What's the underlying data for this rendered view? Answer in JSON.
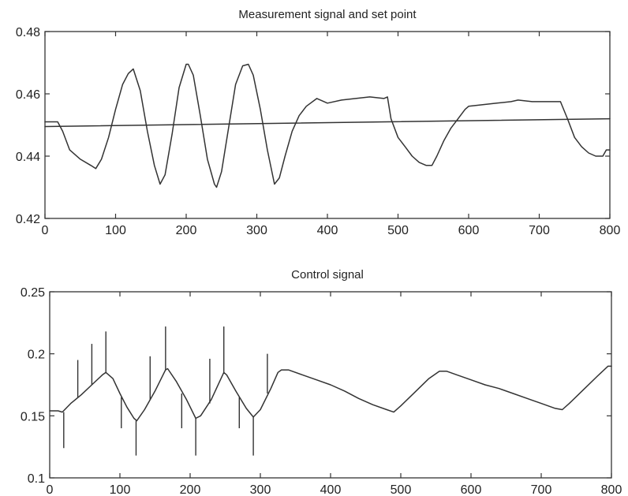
{
  "chart_data": [
    {
      "type": "line",
      "title": "Measurement signal and set point",
      "xlabel": "",
      "ylabel": "",
      "xlim": [
        0,
        800
      ],
      "ylim": [
        0.42,
        0.48
      ],
      "x_ticks": [
        0,
        100,
        200,
        300,
        400,
        500,
        600,
        700,
        800
      ],
      "y_ticks": [
        0.42,
        0.44,
        0.46,
        0.48
      ],
      "x_tick_labels": [
        "0",
        "100",
        "200",
        "300",
        "400",
        "500",
        "600",
        "700",
        "800"
      ],
      "y_tick_labels": [
        "0.42",
        "0.44",
        "0.46",
        "0.48"
      ],
      "grid": false,
      "series": [
        {
          "x": [
            0,
            10,
            18,
            25,
            35,
            50,
            65,
            72,
            80,
            90,
            100,
            110,
            118,
            125,
            135,
            145,
            155,
            163,
            170,
            180,
            190,
            200,
            203,
            210,
            220,
            230,
            240,
            243,
            250,
            260,
            270,
            280,
            288,
            295,
            305,
            315,
            325,
            332,
            340,
            350,
            360,
            370,
            385,
            400,
            420,
            440,
            460,
            480,
            485,
            490,
            500,
            510,
            520,
            530,
            540,
            548,
            555,
            565,
            575,
            585,
            595,
            600,
            620,
            640,
            660,
            670,
            690,
            710,
            730,
            740,
            750,
            760,
            770,
            780,
            790,
            795,
            800
          ],
          "y": [
            0.451,
            0.451,
            0.451,
            0.448,
            0.442,
            0.439,
            0.437,
            0.436,
            0.439,
            0.446,
            0.455,
            0.463,
            0.4665,
            0.468,
            0.461,
            0.448,
            0.437,
            0.431,
            0.434,
            0.447,
            0.462,
            0.4695,
            0.4695,
            0.466,
            0.453,
            0.439,
            0.431,
            0.43,
            0.435,
            0.449,
            0.463,
            0.469,
            0.4695,
            0.466,
            0.455,
            0.442,
            0.431,
            0.433,
            0.44,
            0.448,
            0.453,
            0.456,
            0.4585,
            0.457,
            0.458,
            0.4585,
            0.459,
            0.4585,
            0.459,
            0.452,
            0.446,
            0.443,
            0.44,
            0.438,
            0.437,
            0.437,
            0.44,
            0.445,
            0.449,
            0.452,
            0.455,
            0.456,
            0.4565,
            0.457,
            0.4575,
            0.458,
            0.4575,
            0.4575,
            0.4575,
            0.452,
            0.446,
            0.443,
            0.441,
            0.44,
            0.44,
            0.442,
            0.442
          ]
        },
        {
          "x": [
            0,
            800
          ],
          "y": [
            0.4495,
            0.452
          ]
        }
      ]
    },
    {
      "type": "line",
      "title": "Control signal",
      "xlabel": "",
      "ylabel": "",
      "xlim": [
        0,
        800
      ],
      "ylim": [
        0.1,
        0.25
      ],
      "x_ticks": [
        0,
        100,
        200,
        300,
        400,
        500,
        600,
        700,
        800
      ],
      "y_ticks": [
        0.1,
        0.15,
        0.2,
        0.25
      ],
      "x_tick_labels": [
        "0",
        "100",
        "200",
        "300",
        "400",
        "500",
        "600",
        "700",
        "800"
      ],
      "y_tick_labels": [
        "0.1",
        "0.15",
        "0.2",
        "0.25"
      ],
      "grid": false,
      "series": [
        {
          "x": [
            0,
            12,
            18,
            30,
            45,
            60,
            75,
            80,
            90,
            100,
            110,
            120,
            124,
            135,
            150,
            165,
            168,
            180,
            195,
            208,
            215,
            230,
            248,
            252,
            265,
            280,
            290,
            300,
            315,
            325,
            330,
            340,
            360,
            380,
            400,
            420,
            440,
            460,
            480,
            490,
            500,
            520,
            540,
            555,
            565,
            580,
            600,
            620,
            640,
            660,
            680,
            700,
            720,
            730,
            740,
            760,
            780,
            795,
            800
          ],
          "y": [
            0.154,
            0.154,
            0.153,
            0.16,
            0.167,
            0.175,
            0.183,
            0.185,
            0.18,
            0.168,
            0.157,
            0.148,
            0.146,
            0.155,
            0.17,
            0.187,
            0.188,
            0.178,
            0.163,
            0.148,
            0.15,
            0.163,
            0.185,
            0.183,
            0.17,
            0.156,
            0.149,
            0.155,
            0.172,
            0.185,
            0.187,
            0.187,
            0.183,
            0.179,
            0.175,
            0.17,
            0.164,
            0.159,
            0.155,
            0.153,
            0.158,
            0.169,
            0.18,
            0.186,
            0.186,
            0.183,
            0.179,
            0.175,
            0.172,
            0.168,
            0.164,
            0.16,
            0.156,
            0.155,
            0.16,
            0.171,
            0.182,
            0.19,
            0.19
          ]
        }
      ],
      "spikes": [
        {
          "x": 20,
          "y0": 0.153,
          "y1": 0.124
        },
        {
          "x": 40,
          "y0": 0.165,
          "y1": 0.195
        },
        {
          "x": 60,
          "y0": 0.175,
          "y1": 0.208
        },
        {
          "x": 80,
          "y0": 0.185,
          "y1": 0.218
        },
        {
          "x": 102,
          "y0": 0.165,
          "y1": 0.14
        },
        {
          "x": 123,
          "y0": 0.146,
          "y1": 0.118
        },
        {
          "x": 143,
          "y0": 0.163,
          "y1": 0.198
        },
        {
          "x": 165,
          "y0": 0.187,
          "y1": 0.222
        },
        {
          "x": 188,
          "y0": 0.168,
          "y1": 0.14
        },
        {
          "x": 208,
          "y0": 0.148,
          "y1": 0.118
        },
        {
          "x": 228,
          "y0": 0.16,
          "y1": 0.196
        },
        {
          "x": 248,
          "y0": 0.185,
          "y1": 0.222
        },
        {
          "x": 270,
          "y0": 0.165,
          "y1": 0.14
        },
        {
          "x": 290,
          "y0": 0.149,
          "y1": 0.118
        },
        {
          "x": 310,
          "y0": 0.168,
          "y1": 0.2
        }
      ]
    }
  ]
}
